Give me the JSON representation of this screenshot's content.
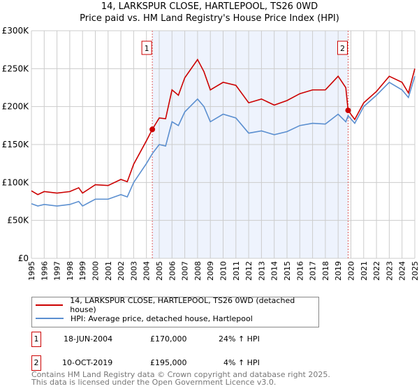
{
  "chart_data": {
    "type": "line",
    "title": "14, LARKSPUR CLOSE, HARTLEPOOL, TS26 0WD",
    "subtitle": "Price paid vs. HM Land Registry's House Price Index (HPI)",
    "xlim": [
      1995,
      2025
    ],
    "ylim": [
      0,
      300000
    ],
    "x_ticks": [
      "1995",
      "1996",
      "1997",
      "1998",
      "1999",
      "2000",
      "2001",
      "2002",
      "2003",
      "2004",
      "2005",
      "2006",
      "2007",
      "2008",
      "2009",
      "2010",
      "2011",
      "2012",
      "2013",
      "2014",
      "2015",
      "2016",
      "2017",
      "2018",
      "2019",
      "2020",
      "2021",
      "2022",
      "2023",
      "2024",
      "2025"
    ],
    "y_ticks": [
      {
        "v": 0,
        "l": "£0"
      },
      {
        "v": 50000,
        "l": "£50K"
      },
      {
        "v": 100000,
        "l": "£100K"
      },
      {
        "v": 150000,
        "l": "£150K"
      },
      {
        "v": 200000,
        "l": "£200K"
      },
      {
        "v": 250000,
        "l": "£250K"
      },
      {
        "v": 300000,
        "l": "£300K"
      }
    ],
    "grid": true,
    "series": [
      {
        "name": "14, LARKSPUR CLOSE, HARTLEPOOL, TS26 0WD (detached house)",
        "color": "#cc0000",
        "x": [
          1995,
          1995.5,
          1996,
          1997,
          1998,
          1998.7,
          1999,
          2000,
          2001,
          2002,
          2002.5,
          2003,
          2004,
          2004.46,
          2005,
          2005.5,
          2006,
          2006.5,
          2007,
          2008,
          2008.5,
          2009,
          2010,
          2011,
          2012,
          2013,
          2014,
          2015,
          2016,
          2017,
          2018,
          2019,
          2019.6,
          2019.78,
          2020.3,
          2021,
          2022,
          2023,
          2024,
          2024.5,
          2025
        ],
        "y": [
          89000,
          84000,
          88000,
          86000,
          88000,
          93000,
          86000,
          97000,
          96000,
          104000,
          101000,
          124000,
          155000,
          170000,
          185000,
          184000,
          222000,
          215000,
          238000,
          262000,
          246000,
          222000,
          232000,
          228000,
          205000,
          210000,
          202000,
          208000,
          217000,
          222000,
          222000,
          240000,
          225000,
          195000,
          183000,
          205000,
          220000,
          240000,
          232000,
          218000,
          250000
        ]
      },
      {
        "name": "HPI: Average price, detached house, Hartlepool",
        "color": "#5b8fd0",
        "x": [
          1995,
          1995.5,
          1996,
          1997,
          1998,
          1998.7,
          1999,
          2000,
          2001,
          2002,
          2002.5,
          2003,
          2004,
          2004.46,
          2005,
          2005.5,
          2006,
          2006.5,
          2007,
          2008,
          2008.5,
          2009,
          2010,
          2011,
          2012,
          2013,
          2014,
          2015,
          2016,
          2017,
          2018,
          2019,
          2019.6,
          2019.78,
          2020.3,
          2021,
          2022,
          2023,
          2024,
          2024.5,
          2025
        ],
        "y": [
          72000,
          69000,
          71000,
          69000,
          71000,
          75000,
          69000,
          78000,
          78000,
          84000,
          81000,
          100000,
          125000,
          138000,
          150000,
          148000,
          180000,
          175000,
          193000,
          210000,
          200000,
          180000,
          190000,
          185000,
          165000,
          168000,
          163000,
          167000,
          175000,
          178000,
          177000,
          190000,
          180000,
          188000,
          178000,
          200000,
          215000,
          232000,
          222000,
          212000,
          240000
        ]
      }
    ],
    "sales": [
      {
        "label": "1",
        "x": 2004.46,
        "y": 170000
      },
      {
        "label": "2",
        "x": 2019.78,
        "y": 195000
      }
    ],
    "shaded_range": [
      2004.46,
      2019.78
    ],
    "legend": "bottom"
  },
  "legend": {
    "series1": "14, LARKSPUR CLOSE, HARTLEPOOL, TS26 0WD (detached house)",
    "series2": "HPI: Average price, detached house, Hartlepool"
  },
  "transactions": [
    {
      "n": "1",
      "date": "18-JUN-2004",
      "price": "£170,000",
      "hpi": "24% ↑ HPI"
    },
    {
      "n": "2",
      "date": "10-OCT-2019",
      "price": "£195,000",
      "hpi": "4% ↑ HPI"
    }
  ],
  "footer": {
    "line1": "Contains HM Land Registry data © Crown copyright and database right 2025.",
    "line2": "This data is licensed under the Open Government Licence v3.0."
  }
}
